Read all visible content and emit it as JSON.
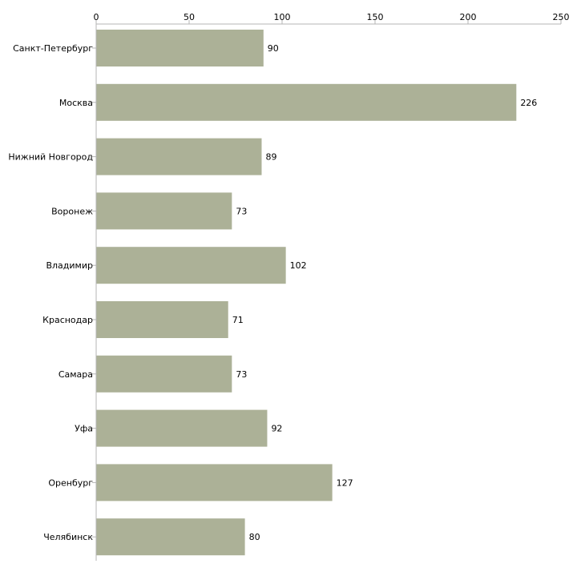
{
  "chart_data": {
    "type": "bar",
    "orientation": "horizontal",
    "title": "",
    "xlabel": "",
    "ylabel": "",
    "xlim": [
      0,
      250
    ],
    "ticks": [
      0,
      50,
      100,
      150,
      200,
      250
    ],
    "categories": [
      "Санкт-Петербург",
      "Москва",
      "Нижний Новгород",
      "Воронеж",
      "Владимир",
      "Краснодар",
      "Самара",
      "Уфа",
      "Оренбург",
      "Челябинск"
    ],
    "values": [
      90,
      226,
      89,
      73,
      102,
      71,
      73,
      92,
      127,
      80
    ],
    "value_labels": [
      "90",
      "226",
      "89",
      "73",
      "102",
      "71",
      "73",
      "92",
      "127",
      "80"
    ],
    "grid": false,
    "legend": "none",
    "bar_color": "#acb197"
  }
}
